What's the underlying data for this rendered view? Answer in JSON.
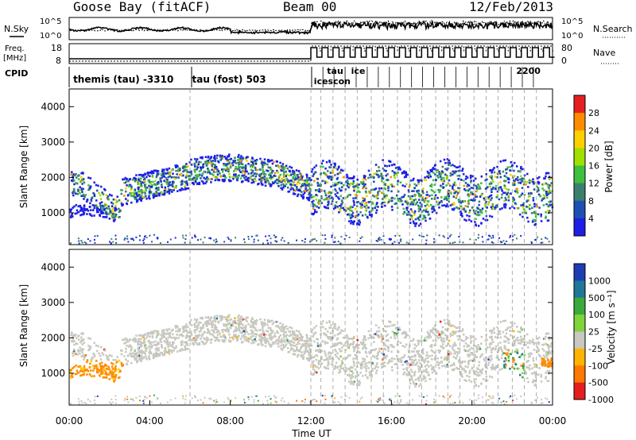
{
  "header": {
    "station": "Goose Bay (fitACF)",
    "beam": "Beam 00",
    "date": "12/Feb/2013"
  },
  "side_labels": {
    "nsky": "N.Sky",
    "freq_line1": "Freq.",
    "freq_line2": "[MHz]",
    "cpid": "CPID",
    "nsearch": "N.Search",
    "nave": "Nave"
  },
  "noise_panel": {
    "left_ticks": [
      "10^5",
      "10^0"
    ],
    "right_ticks": [
      "10^5",
      "10^0"
    ]
  },
  "freq_panel": {
    "left_ticks": [
      "18",
      "8"
    ],
    "right_ticks": [
      "80",
      "0"
    ]
  },
  "cpid_labels": [
    {
      "text": "themis (tau) -3310",
      "hour": 0.2
    },
    {
      "text": "tau (fost) 503",
      "hour": 6.1
    },
    {
      "text": "tau",
      "hour": 12.8
    },
    {
      "text": "icescon",
      "hour": 12.15
    },
    {
      "text": "ice",
      "hour": 14.0
    },
    {
      "text": "200",
      "hour": 22.5
    },
    {
      "text": "2",
      "hour": 22.2
    }
  ],
  "chart_data": [
    {
      "type": "heatmap",
      "name": "power",
      "ylabel": "Slant Range [km]",
      "yticks": [
        "4000",
        "3000",
        "2000",
        "1000"
      ],
      "ylim": [
        100,
        4500
      ],
      "colorbar_label": "Power [dB]",
      "colorbar_ticks": [
        "28",
        "24",
        "20",
        "16",
        "12",
        "8",
        "4"
      ],
      "colors": [
        "#1e1ee6",
        "#1e4fb4",
        "#3c7f6e",
        "#3fbf3f",
        "#a0e000",
        "#ffd000",
        "#ff8c00",
        "#e62020"
      ]
    },
    {
      "type": "heatmap",
      "name": "velocity",
      "ylabel": "Slant Range [km]",
      "yticks": [
        "4000",
        "3000",
        "2000",
        "1000"
      ],
      "ylim": [
        100,
        4500
      ],
      "colorbar_label": "Velocity [m s⁻¹]",
      "colorbar_ticks": [
        "1000",
        "500",
        "100",
        "25",
        "-25",
        "-100",
        "-500",
        "-1000"
      ],
      "colors": [
        "#1e3cb4",
        "#1e7896",
        "#3caa3c",
        "#7fd43c",
        "#c8c8c0",
        "#ffb400",
        "#ff7800",
        "#e61e1e"
      ]
    }
  ],
  "xaxis": {
    "label": "Time UT",
    "ticks": [
      "00:00",
      "04:00",
      "08:00",
      "12:00",
      "16:00",
      "20:00",
      "00:00"
    ]
  }
}
